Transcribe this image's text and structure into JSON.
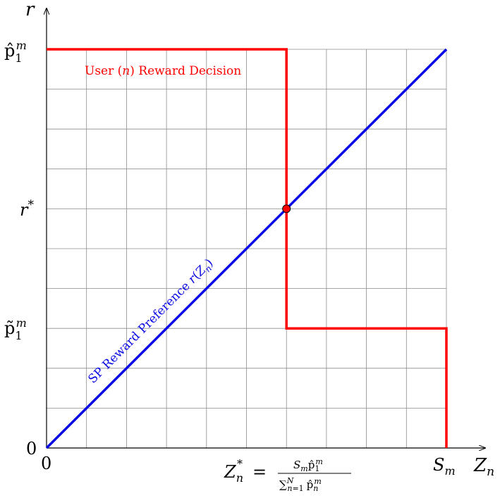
{
  "axes": {
    "x_label": "Z_n",
    "y_label": "r"
  },
  "x_ticks": [
    {
      "value": 0,
      "label": "0"
    },
    {
      "value": 6,
      "label": "Z*_n = S_m p̂_1^m / Σ_{n=1}^N p̂_n^m"
    },
    {
      "value": 10,
      "label": "S_m"
    }
  ],
  "y_ticks": [
    {
      "value": 0,
      "label": "0"
    },
    {
      "value": 3,
      "label": "p̃_1^m"
    },
    {
      "value": 6,
      "label": "r*"
    },
    {
      "value": 10,
      "label": "p̂_1^m"
    }
  ],
  "annotations": {
    "user_decision": "User (n) Reward Decision",
    "sp_preference": "SP Reward Preference r(Z_n)"
  },
  "chart_data": {
    "type": "line",
    "xlim": [
      0,
      10
    ],
    "ylim": [
      0,
      10
    ],
    "grid": true,
    "series": [
      {
        "name": "SP Reward Preference r(Z_n)",
        "color": "#0a0ae6",
        "points": [
          [
            0,
            0
          ],
          [
            10,
            10
          ]
        ]
      },
      {
        "name": "User (n) Reward Decision",
        "color": "#ff0000",
        "points": [
          [
            0,
            10
          ],
          [
            6,
            10
          ],
          [
            6,
            3
          ],
          [
            10,
            3
          ],
          [
            10,
            0
          ]
        ]
      }
    ],
    "equilibrium_point": {
      "x": 6,
      "y": 6,
      "color": "#ff0000"
    }
  }
}
